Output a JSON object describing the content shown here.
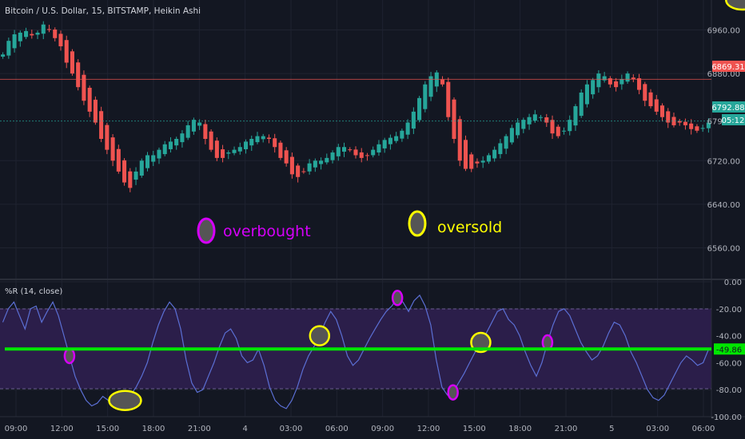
{
  "symbol_title": "Bitcoin / U.S. Dollar, 15, BITSTAMP, Heikin Ashi",
  "price_badges": {
    "upper": "6869.31",
    "current": "6792.88",
    "countdown": "05:12"
  },
  "legend": {
    "overbought": "overbought",
    "oversold": "oversold"
  },
  "indicator": {
    "name": "%R (14, close)",
    "value_badge": "-49.86"
  },
  "colors": {
    "background": "#131722",
    "bull": "#26a69a",
    "bear": "#ef5350",
    "overbought_marker": "#d500f9",
    "oversold_marker": "#ffff00",
    "signal_line": "#00e600",
    "wr_line": "#5b6fd4",
    "band_fill": "#2b1e4a",
    "upper_badge": "#ef5350",
    "current_badge": "#26a69a"
  },
  "chart_data": [
    {
      "type": "candlestick",
      "title": "Bitcoin / U.S. Dollar, 15, BITSTAMP, Heikin Ashi",
      "y_ticks": [
        "6960.00",
        "6880.00",
        "6792.88",
        "6720.00",
        "6640.00",
        "6560.00"
      ],
      "x_ticks": [
        "09:00",
        "12:00",
        "15:00",
        "18:00",
        "21:00",
        "4",
        "03:00",
        "06:00",
        "09:00",
        "12:00",
        "15:00",
        "18:00",
        "21:00",
        "5",
        "03:00",
        "06:00"
      ],
      "ylim": [
        6505,
        7015
      ],
      "horizontal_lines": [
        6869.31,
        6792.88
      ],
      "series": [
        {
          "name": "price",
          "close": [
            6915,
            6940,
            6952,
            6955,
            6958,
            6950,
            6955,
            6970,
            6960,
            6945,
            6930,
            6900,
            6880,
            6855,
            6830,
            6810,
            6790,
            6760,
            6740,
            6720,
            6700,
            6680,
            6670,
            6700,
            6720,
            6730,
            6730,
            6740,
            6750,
            6755,
            6760,
            6770,
            6785,
            6795,
            6790,
            6760,
            6740,
            6725,
            6725,
            6735,
            6740,
            6745,
            6755,
            6760,
            6765,
            6765,
            6760,
            6745,
            6725,
            6715,
            6695,
            6690,
            6700,
            6715,
            6720,
            6720,
            6725,
            6735,
            6745,
            6745,
            6740,
            6730,
            6725,
            6730,
            6740,
            6750,
            6758,
            6762,
            6765,
            6775,
            6790,
            6810,
            6835,
            6860,
            6875,
            6882,
            6860,
            6800,
            6760,
            6720,
            6705,
            6705,
            6715,
            6720,
            6730,
            6740,
            6752,
            6765,
            6780,
            6790,
            6795,
            6800,
            6805,
            6800,
            6790,
            6770,
            6765,
            6775,
            6795,
            6820,
            6845,
            6860,
            6868,
            6880,
            6875,
            6860,
            6855,
            6870,
            6880,
            6870,
            6850,
            6830,
            6820,
            6810,
            6800,
            6790,
            6785,
            6790,
            6785,
            6778,
            6775,
            6780,
            6790
          ]
        }
      ],
      "annotations": [
        {
          "text": "overbought",
          "marker": "magenta circle"
        },
        {
          "text": "oversold",
          "marker": "yellow circle"
        }
      ]
    },
    {
      "type": "line",
      "title": "%R (14, close)",
      "y_ticks": [
        "0.00",
        "-20.00",
        "-40.00",
        "-60.00",
        "-80.00",
        "-100.00"
      ],
      "ylim": [
        -100,
        0
      ],
      "band": [
        -80,
        -20
      ],
      "signal_level": -49.86,
      "overbought_points": [
        12,
        71,
        81,
        98
      ],
      "oversold_points": [
        22,
        57,
        86,
        133
      ],
      "series": [
        {
          "name": "%R",
          "values": [
            -30,
            -20,
            -15,
            -25,
            -35,
            -20,
            -18,
            -30,
            -22,
            -15,
            -25,
            -40,
            -55,
            -70,
            -80,
            -88,
            -92,
            -90,
            -85,
            -88,
            -92,
            -90,
            -88,
            -84,
            -78,
            -70,
            -60,
            -45,
            -32,
            -22,
            -15,
            -20,
            -35,
            -58,
            -75,
            -82,
            -80,
            -70,
            -60,
            -48,
            -38,
            -35,
            -42,
            -55,
            -60,
            -58,
            -50,
            -62,
            -78,
            -88,
            -92,
            -94,
            -88,
            -78,
            -65,
            -55,
            -48,
            -40,
            -30,
            -22,
            -28,
            -40,
            -55,
            -62,
            -58,
            -50,
            -42,
            -35,
            -28,
            -22,
            -18,
            -12,
            -15,
            -22,
            -14,
            -10,
            -18,
            -32,
            -58,
            -78,
            -84,
            -82,
            -75,
            -68,
            -60,
            -52,
            -45,
            -38,
            -30,
            -22,
            -20,
            -28,
            -32,
            -40,
            -52,
            -62,
            -70,
            -60,
            -45,
            -32,
            -22,
            -20,
            -25,
            -35,
            -45,
            -52,
            -58,
            -55,
            -48,
            -38,
            -30,
            -32,
            -40,
            -52,
            -60,
            -70,
            -80,
            -86,
            -88,
            -84,
            -76,
            -68,
            -60,
            -55,
            -58,
            -62,
            -60,
            -50
          ]
        }
      ]
    }
  ]
}
